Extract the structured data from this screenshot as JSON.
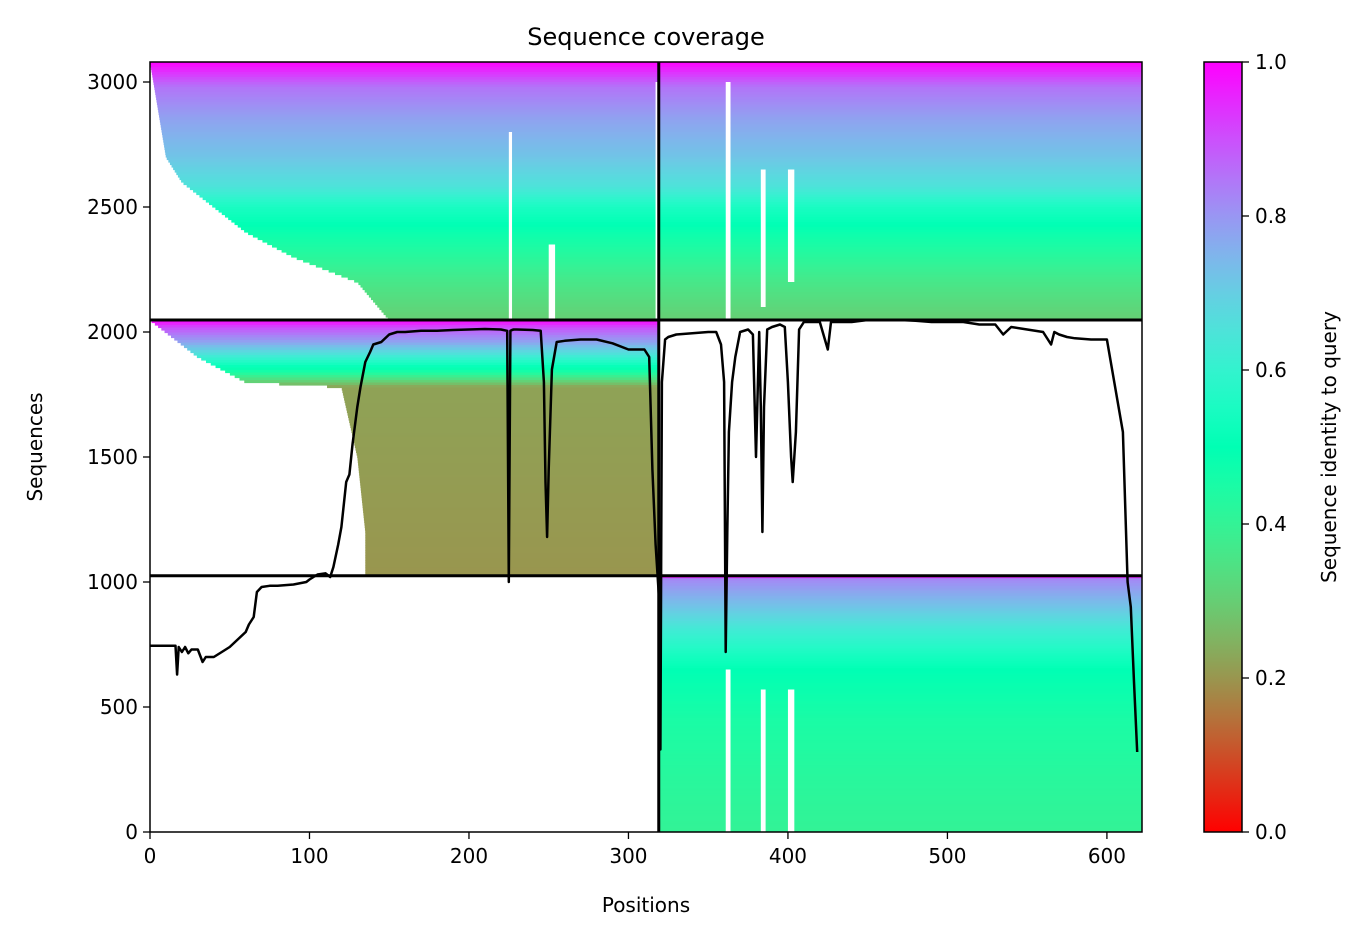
{
  "chart_data": {
    "type": "heatmap",
    "title": "Sequence coverage",
    "xlabel": "Positions",
    "ylabel": "Sequences",
    "xlim": [
      0,
      622
    ],
    "ylim": [
      0,
      3080
    ],
    "x_ticks": [
      0,
      100,
      200,
      300,
      400,
      500,
      600
    ],
    "y_ticks": [
      0,
      500,
      1000,
      1500,
      2000,
      2500,
      3000
    ],
    "colorbar": {
      "label": "Sequence identity to query",
      "colormap": "rainbow_r",
      "range": [
        0,
        1
      ],
      "ticks": [
        "0.0",
        "0.2",
        "0.4",
        "0.6",
        "0.8",
        "1.0"
      ]
    },
    "dividers": {
      "vertical_x": 319,
      "horizontal_y": [
        1025,
        2048
      ]
    },
    "blocks": [
      {
        "name": "top-left",
        "x0": 0,
        "x1": 319,
        "y0": 2048,
        "y1": 3080,
        "bands": [
          [
            3080,
            1.0
          ],
          [
            2980,
            0.85
          ],
          [
            2850,
            0.78
          ],
          [
            2700,
            0.72
          ],
          [
            2580,
            0.65
          ],
          [
            2500,
            0.55
          ],
          [
            2400,
            0.48
          ],
          [
            2300,
            0.42
          ],
          [
            2200,
            0.36
          ],
          [
            2100,
            0.32
          ],
          [
            2048,
            0.3
          ]
        ],
        "start_profile": [
          [
            3080,
            0
          ],
          [
            2700,
            10
          ],
          [
            2600,
            20
          ],
          [
            2500,
            40
          ],
          [
            2400,
            60
          ],
          [
            2300,
            90
          ],
          [
            2200,
            130
          ],
          [
            2048,
            150
          ]
        ]
      },
      {
        "name": "top-right",
        "x0": 319,
        "x1": 622,
        "y0": 2048,
        "y1": 3080,
        "bands": [
          [
            3080,
            1.0
          ],
          [
            2980,
            0.85
          ],
          [
            2850,
            0.78
          ],
          [
            2700,
            0.72
          ],
          [
            2580,
            0.65
          ],
          [
            2500,
            0.55
          ],
          [
            2400,
            0.48
          ],
          [
            2300,
            0.42
          ],
          [
            2200,
            0.36
          ],
          [
            2100,
            0.32
          ],
          [
            2048,
            0.3
          ]
        ]
      },
      {
        "name": "middle-left",
        "x0": 0,
        "x1": 319,
        "y0": 1025,
        "y1": 2048,
        "bands": [
          [
            2048,
            1.0
          ],
          [
            2010,
            0.88
          ],
          [
            1960,
            0.78
          ],
          [
            1900,
            0.62
          ],
          [
            1840,
            0.45
          ],
          [
            1780,
            0.22
          ],
          [
            1025,
            0.2
          ]
        ],
        "start_profile": [
          [
            2048,
            0
          ],
          [
            1900,
            30
          ],
          [
            1800,
            60
          ],
          [
            1780,
            120
          ],
          [
            1500,
            130
          ],
          [
            1200,
            135
          ],
          [
            1025,
            135
          ]
        ]
      },
      {
        "name": "bottom-right",
        "x0": 319,
        "x1": 622,
        "y0": 0,
        "y1": 1025,
        "bands": [
          [
            1025,
            1.0
          ],
          [
            1010,
            0.82
          ],
          [
            900,
            0.72
          ],
          [
            800,
            0.62
          ],
          [
            650,
            0.5
          ],
          [
            450,
            0.45
          ],
          [
            200,
            0.42
          ],
          [
            0,
            0.4
          ]
        ]
      }
    ],
    "gaps": [
      {
        "x0": 225,
        "x1": 227,
        "y0": 2048,
        "y1": 2800
      },
      {
        "x0": 250,
        "x1": 254,
        "y0": 2048,
        "y1": 2350
      },
      {
        "x0": 361,
        "x1": 364,
        "y0": 2048,
        "y1": 3000
      },
      {
        "x0": 383,
        "x1": 386,
        "y0": 2100,
        "y1": 2650
      },
      {
        "x0": 400,
        "x1": 404,
        "y0": 2200,
        "y1": 2650
      },
      {
        "x0": 361,
        "x1": 364,
        "y0": 0,
        "y1": 650
      },
      {
        "x0": 383,
        "x1": 386,
        "y0": 0,
        "y1": 570
      },
      {
        "x0": 400,
        "x1": 404,
        "y0": 0,
        "y1": 570
      },
      {
        "x0": 317,
        "x1": 319,
        "y0": 2048,
        "y1": 3000
      }
    ],
    "coverage_line": {
      "name": "coverage",
      "x": [
        0,
        16,
        17,
        18,
        20,
        22,
        24,
        26,
        28,
        30,
        33,
        35,
        40,
        45,
        50,
        55,
        60,
        62,
        65,
        67,
        70,
        75,
        80,
        90,
        98,
        100,
        105,
        110,
        113,
        115,
        118,
        120,
        123,
        125,
        127,
        130,
        132,
        135,
        138,
        140,
        145,
        150,
        155,
        160,
        170,
        180,
        190,
        200,
        210,
        220,
        224,
        225,
        226,
        227,
        228,
        230,
        240,
        245,
        247,
        248,
        249,
        250,
        252,
        255,
        260,
        270,
        280,
        290,
        300,
        310,
        313,
        315,
        317,
        319,
        320,
        321,
        323,
        325,
        330,
        340,
        350,
        355,
        358,
        360,
        361,
        362,
        363,
        365,
        367,
        370,
        375,
        378,
        380,
        382,
        383,
        384,
        385,
        387,
        390,
        395,
        398,
        400,
        402,
        403,
        405,
        407,
        410,
        415,
        420,
        425,
        427,
        430,
        435,
        440,
        450,
        460,
        470,
        480,
        490,
        500,
        510,
        520,
        530,
        535,
        540,
        550,
        560,
        565,
        567,
        570,
        575,
        580,
        590,
        600,
        610,
        613,
        615,
        617,
        619,
        621
      ],
      "y": [
        745,
        745,
        630,
        740,
        720,
        740,
        715,
        730,
        730,
        730,
        680,
        700,
        700,
        720,
        740,
        770,
        800,
        830,
        860,
        960,
        980,
        985,
        985,
        990,
        1000,
        1010,
        1030,
        1035,
        1020,
        1060,
        1150,
        1220,
        1400,
        1430,
        1550,
        1700,
        1780,
        1880,
        1920,
        1950,
        1960,
        1990,
        2000,
        2000,
        2005,
        2005,
        2008,
        2010,
        2012,
        2010,
        2005,
        1000,
        2005,
        2008,
        2010,
        2010,
        2008,
        2005,
        1800,
        1400,
        1180,
        1450,
        1850,
        1960,
        1965,
        1970,
        1970,
        1955,
        1930,
        1930,
        1900,
        1450,
        1150,
        950,
        330,
        1800,
        1970,
        1980,
        1990,
        1995,
        2000,
        2000,
        1950,
        1800,
        720,
        1200,
        1600,
        1800,
        1900,
        2000,
        2010,
        1990,
        1500,
        2000,
        1700,
        1200,
        1700,
        2010,
        2020,
        2030,
        2020,
        1800,
        1500,
        1400,
        1600,
        2010,
        2040,
        2040,
        2040,
        1930,
        2040,
        2040,
        2040,
        2040,
        2048,
        2048,
        2048,
        2045,
        2040,
        2040,
        2040,
        2030,
        2030,
        1990,
        2020,
        2010,
        2000,
        1950,
        2000,
        1990,
        1980,
        1975,
        1970,
        1970,
        1600,
        1000,
        900,
        600,
        320
      ]
    }
  }
}
